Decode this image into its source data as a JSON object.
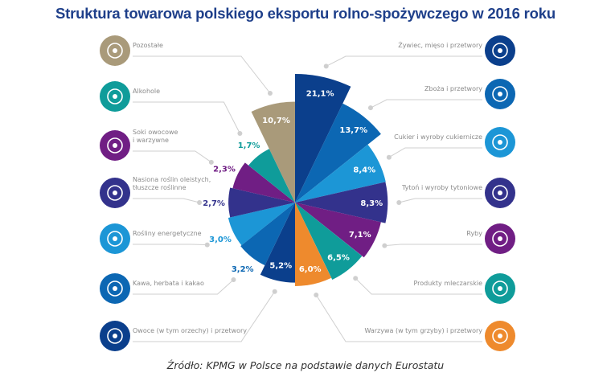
{
  "title": "Struktura towarowa polskiego eksportu rolno-spożywczego w 2016 roku",
  "source": "Źródło: KPMG w Polsce na podstawie danych Eurostatu",
  "colors": {
    "navy": "#0b3f8c",
    "blue": "#0c67b3",
    "light_blue": "#1c96d6",
    "indigo": "#33328c",
    "purple": "#701e84",
    "teal": "#0f9c9a",
    "orange": "#ee8a2d",
    "tan": "#a99a7a",
    "leader": "#cfcfcf",
    "title": "#1e3f8a"
  },
  "chart_data": {
    "type": "polar-area",
    "title": "Struktura towarowa polskiego eksportu rolno-spożywczego w 2016 roku",
    "unit": "%",
    "order": "clockwise from top",
    "slices": [
      {
        "label": "Żywiec, mięso i przetwory",
        "value": 21.1,
        "display": "21,1%",
        "color": "navy",
        "icon": "meat-icon",
        "side": "right"
      },
      {
        "label": "Zboża i przetwory",
        "value": 13.7,
        "display": "13,7%",
        "color": "blue",
        "icon": "wheat-icon",
        "side": "right"
      },
      {
        "label": "Cukier i wyroby cukiernicze",
        "value": 8.4,
        "display": "8,4%",
        "color": "light_blue",
        "icon": "donut-icon",
        "side": "right"
      },
      {
        "label": "Tytoń i wyroby tytoniowe",
        "value": 8.3,
        "display": "8,3%",
        "color": "indigo",
        "icon": "pipe-icon",
        "side": "right"
      },
      {
        "label": "Ryby",
        "value": 7.1,
        "display": "7,1%",
        "color": "purple",
        "icon": "fish-icon",
        "side": "right"
      },
      {
        "label": "Produkty mleczarskie",
        "value": 6.5,
        "display": "6,5%",
        "color": "teal",
        "icon": "dairy-jar-icon",
        "side": "right"
      },
      {
        "label": "Warzywa (w tym grzyby) i przetwory",
        "value": 6.0,
        "display": "6,0%",
        "color": "orange",
        "icon": "carrot-icon",
        "side": "right"
      },
      {
        "label": "Owoce (w tym orzechy) i przetwory",
        "value": 5.2,
        "display": "5,2%",
        "color": "navy",
        "icon": "watermelon-icon",
        "side": "left"
      },
      {
        "label": "Kawa, herbata i kakao",
        "value": 3.2,
        "display": "3,2%",
        "color": "blue",
        "icon": "coffee-bean-icon",
        "side": "left"
      },
      {
        "label": "Rośliny energetyczne",
        "value": 3.0,
        "display": "3,0%",
        "color": "light_blue",
        "icon": "sunflower-icon",
        "side": "left"
      },
      {
        "label": "Nasiona roślin oleistych, tłuszcze roślinne",
        "label_lines": [
          "Nasiona roślin oleistych,",
          "tłuszcze roślinne"
        ],
        "value": 2.7,
        "display": "2,7%",
        "color": "indigo",
        "icon": "oil-drop-icon",
        "side": "left"
      },
      {
        "label": "Soki owocowe i warzywne",
        "label_lines": [
          "Soki owocowe",
          "i warzywne"
        ],
        "value": 2.3,
        "display": "2,3%",
        "color": "purple",
        "icon": "bottle-icon",
        "side": "left"
      },
      {
        "label": "Alkohole",
        "value": 1.7,
        "display": "1,7%",
        "color": "teal",
        "icon": "wine-icon",
        "side": "left"
      },
      {
        "label": "Pozostałe",
        "value": 10.7,
        "display": "10,7%",
        "color": "tan",
        "icon": "pot-icon",
        "side": "left"
      }
    ]
  }
}
